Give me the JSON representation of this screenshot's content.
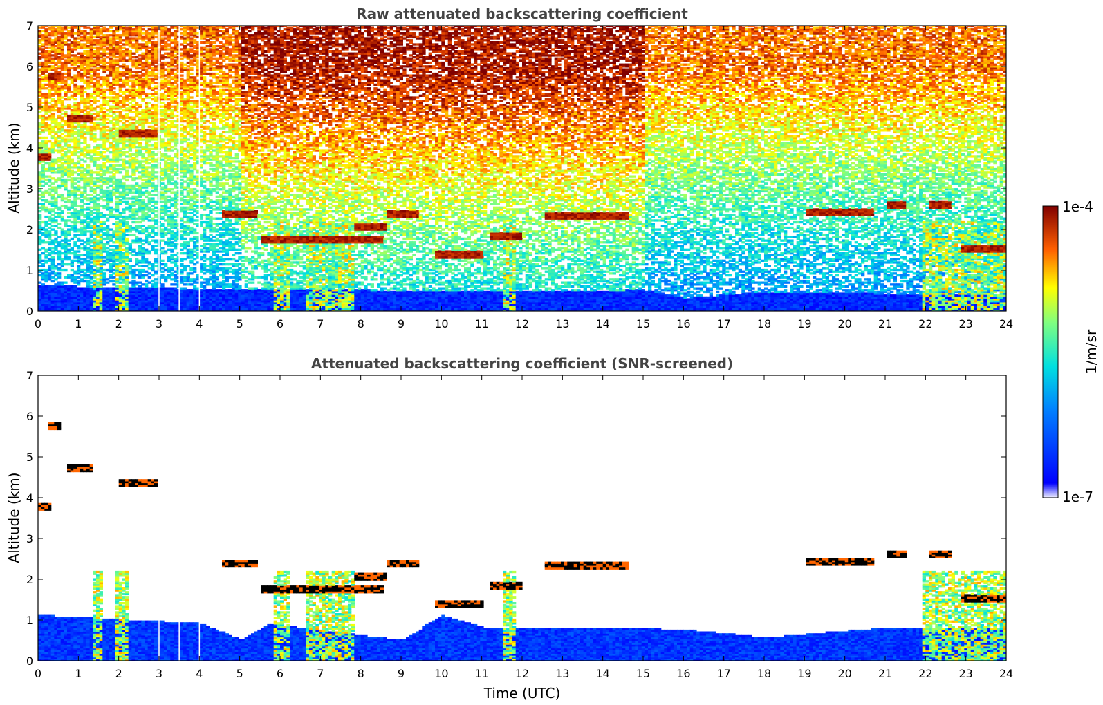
{
  "chart_data": [
    {
      "type": "heatmap",
      "title": "Raw attenuated backscattering coefficient",
      "xlabel": "",
      "ylabel": "Altitude (km)",
      "xlim": [
        0,
        24
      ],
      "ylim": [
        0,
        7
      ],
      "x_ticks": [
        0,
        1,
        2,
        3,
        4,
        5,
        6,
        7,
        8,
        9,
        10,
        11,
        12,
        13,
        14,
        15,
        16,
        17,
        18,
        19,
        20,
        21,
        22,
        23,
        24
      ],
      "y_ticks": [
        0,
        1,
        2,
        3,
        4,
        5,
        6,
        7
      ],
      "value_scale": "log",
      "value_range": [
        "1e-7",
        "1e-4"
      ],
      "features": {
        "noise_layer": "signal noise increases with altitude, strong red/yellow speckle above ~3 km especially 5-15 UTC",
        "boundary_layer_top_km": [
          [
            0,
            0.6
          ],
          [
            3,
            0.55
          ],
          [
            5,
            0.5
          ],
          [
            8,
            0.5
          ],
          [
            10,
            0.45
          ],
          [
            15,
            0.5
          ],
          [
            16,
            0.3
          ],
          [
            18,
            0.45
          ],
          [
            21,
            0.4
          ],
          [
            22,
            0.4
          ],
          [
            24,
            0.4
          ]
        ],
        "cloud_layers": [
          {
            "t_start": 0.2,
            "t_end": 0.55,
            "alt_km": 5.75
          },
          {
            "t_start": 0.0,
            "t_end": 0.25,
            "alt_km": 3.75
          },
          {
            "t_start": 0.7,
            "t_end": 1.3,
            "alt_km": 4.7
          },
          {
            "t_start": 2.0,
            "t_end": 2.9,
            "alt_km": 4.35
          },
          {
            "t_start": 4.5,
            "t_end": 5.4,
            "alt_km": 2.35
          },
          {
            "t_start": 5.5,
            "t_end": 8.5,
            "alt_km": 1.75
          },
          {
            "t_start": 7.8,
            "t_end": 8.6,
            "alt_km": 2.05
          },
          {
            "t_start": 8.6,
            "t_end": 9.4,
            "alt_km": 2.35
          },
          {
            "t_start": 9.8,
            "t_end": 11.0,
            "alt_km": 1.35
          },
          {
            "t_start": 11.2,
            "t_end": 12.0,
            "alt_km": 1.8
          },
          {
            "t_start": 12.5,
            "t_end": 14.6,
            "alt_km": 2.3
          },
          {
            "t_start": 19.0,
            "t_end": 20.7,
            "alt_km": 2.4
          },
          {
            "t_start": 21.0,
            "t_end": 21.5,
            "alt_km": 2.6
          },
          {
            "t_start": 22.0,
            "t_end": 22.6,
            "alt_km": 2.6
          },
          {
            "t_start": 22.8,
            "t_end": 24.0,
            "alt_km": 1.5
          }
        ],
        "precipitation_columns_utc": [
          [
            1.3,
            1.6
          ],
          [
            1.9,
            2.2
          ],
          [
            5.8,
            6.2
          ],
          [
            6.6,
            7.8
          ],
          [
            11.5,
            11.8
          ],
          [
            21.9,
            24.0
          ]
        ],
        "data_gaps_utc": [
          3.0,
          3.5,
          4.0
        ]
      }
    },
    {
      "type": "heatmap",
      "title": "Attenuated backscattering coefficient (SNR-screened)",
      "xlabel": "Time (UTC)",
      "ylabel": "Altitude (km)",
      "xlim": [
        0,
        24
      ],
      "ylim": [
        0,
        7
      ],
      "x_ticks": [
        0,
        1,
        2,
        3,
        4,
        5,
        6,
        7,
        8,
        9,
        10,
        11,
        12,
        13,
        14,
        15,
        16,
        17,
        18,
        19,
        20,
        21,
        22,
        23,
        24
      ],
      "y_ticks": [
        0,
        1,
        2,
        3,
        4,
        5,
        6,
        7
      ],
      "value_scale": "log",
      "value_range": [
        "1e-7",
        "1e-4"
      ],
      "features": {
        "screened_boundary_layer_top_km": [
          [
            0,
            1.1
          ],
          [
            2,
            1.0
          ],
          [
            4,
            0.9
          ],
          [
            5,
            0.5
          ],
          [
            5.7,
            0.9
          ],
          [
            8,
            0.6
          ],
          [
            9,
            0.5
          ],
          [
            10,
            1.1
          ],
          [
            11,
            0.8
          ],
          [
            12,
            0.8
          ],
          [
            14,
            0.8
          ],
          [
            16,
            0.75
          ],
          [
            18,
            0.55
          ],
          [
            21,
            0.8
          ],
          [
            22,
            0.8
          ],
          [
            24,
            0.8
          ]
        ],
        "saturated_cloud_layers_shown_black": true
      }
    }
  ],
  "colorbar": {
    "max_label": "1e-4",
    "min_label": "1e-7",
    "unit_label": "1/m/sr",
    "colormap": "jet"
  }
}
